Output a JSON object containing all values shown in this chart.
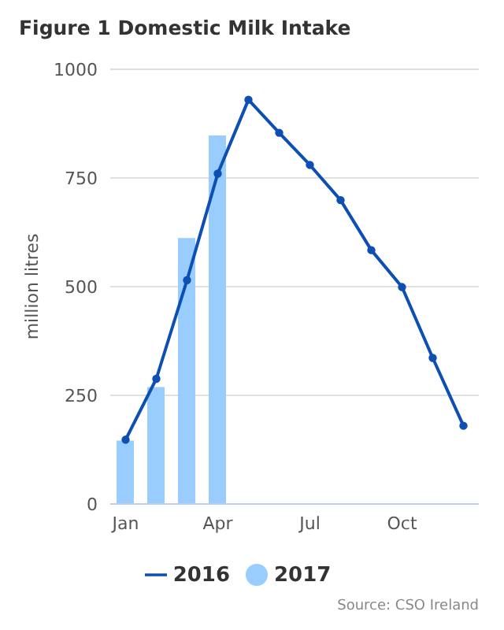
{
  "chart_data": {
    "type": "bar",
    "title": "Figure 1 Domestic Milk Intake",
    "ylabel": "million litres",
    "categories": [
      "Jan",
      null,
      null,
      "Apr",
      null,
      null,
      "Jul",
      null,
      null,
      "Oct",
      null,
      null
    ],
    "series": [
      {
        "name": "2016",
        "type": "line",
        "color": "#0d4fb3",
        "values": [
          148,
          288,
          515,
          760,
          930,
          854,
          780,
          699,
          584,
          499,
          336,
          180
        ]
      },
      {
        "name": "2017",
        "color": "#99ccff",
        "values": [
          146,
          269,
          612,
          848,
          null,
          null,
          null,
          null,
          null,
          null,
          null,
          null
        ]
      }
    ],
    "ylim": [
      0,
      1000
    ],
    "yticks": [
      0,
      250,
      500,
      750,
      1000
    ],
    "grid": "y",
    "legend": "bottom",
    "marker": "circle",
    "annotations": [
      "Source: CSO Ireland"
    ]
  }
}
